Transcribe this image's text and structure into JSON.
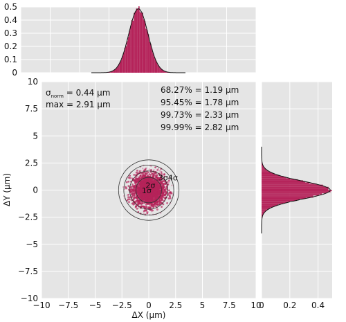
{
  "chart_data": [
    {
      "type": "histogram",
      "panel": "top-marginal",
      "x": [
        -3.0,
        -2.5,
        -2.0,
        -1.5,
        -1.0,
        -0.75,
        -0.5,
        -0.25,
        0,
        0.25,
        0.5,
        0.75,
        1.0,
        1.5,
        2.0,
        2.5,
        3.0
      ],
      "values": [
        0.0,
        0.0,
        0.01,
        0.04,
        0.12,
        0.2,
        0.32,
        0.43,
        0.48,
        0.43,
        0.32,
        0.2,
        0.12,
        0.04,
        0.01,
        0.0,
        0.0
      ],
      "xlim": [
        -10,
        10
      ],
      "ylim": [
        0,
        0.5
      ],
      "yticks": [
        "0",
        "0.1",
        "0.2",
        "0.3",
        "0.4",
        "0.5"
      ],
      "grid": true,
      "color": "#b5235a"
    },
    {
      "type": "scatter",
      "panel": "main",
      "xlabel": "ΔX (μm)",
      "ylabel": "ΔY (μm)",
      "xlim": [
        -10,
        10
      ],
      "ylim": [
        -10,
        10
      ],
      "xticks": [
        "−10",
        "−7.5",
        "−5",
        "−2.5",
        "0",
        "2.5",
        "5",
        "7.5",
        "10"
      ],
      "yticks": [
        "10",
        "7.5",
        "5",
        "2.5",
        "0",
        "−2.5",
        "−5",
        "−7.5",
        "−10"
      ],
      "grid": true,
      "point_color": "#b5235a",
      "sigma_norm_um": 0.44,
      "circles": [
        {
          "label": "1σ",
          "radius_um": 1.19
        },
        {
          "label": "2σ",
          "radius_um": 1.78
        },
        {
          "label": "3σ",
          "radius_um": 2.33
        },
        {
          "label": "4σ",
          "radius_um": 2.82
        }
      ],
      "annotations": {
        "sigma_sym": "σ",
        "sigma_sub": "norm",
        "sigma_rest": " = 0.44 μm",
        "max": "max = 2.91 μm",
        "pct": [
          "68.27% = 1.19 μm",
          "95.45% = 1.78 μm",
          "99.73% = 2.33 μm",
          "99.99% = 2.82 μm"
        ]
      }
    },
    {
      "type": "histogram",
      "panel": "right-marginal",
      "orientation": "horizontal",
      "y": [
        -3.0,
        -2.5,
        -2.0,
        -1.5,
        -1.0,
        -0.75,
        -0.5,
        -0.25,
        0,
        0.25,
        0.5,
        0.75,
        1.0,
        1.5,
        2.0,
        2.5,
        3.0
      ],
      "values": [
        0.0,
        0.0,
        0.01,
        0.04,
        0.12,
        0.2,
        0.32,
        0.43,
        0.48,
        0.43,
        0.32,
        0.2,
        0.12,
        0.04,
        0.01,
        0.0,
        0.0
      ],
      "ylim": [
        -10,
        10
      ],
      "xlim": [
        0,
        0.5
      ],
      "xticks": [
        "0",
        "0.2",
        "0.4"
      ],
      "grid": true,
      "color": "#b5235a"
    }
  ]
}
